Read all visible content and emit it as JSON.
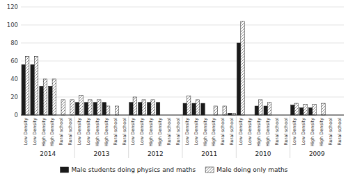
{
  "chart_data": {
    "type": "bar",
    "categories": [
      "Low Density",
      "Low Density",
      "High Density",
      "High Density",
      "Rural school",
      "Rural school",
      "Low Density",
      "Low Density",
      "High Density",
      "High Density",
      "Rural school",
      "Rural school",
      "Low Density",
      "Low Density",
      "High Density",
      "High Density",
      "Rural school",
      "Rural school",
      "Low Density",
      "Low Density",
      "High Density",
      "High Density",
      "Rural school",
      "Rural school",
      "Low Density",
      "Low Density",
      "High Density",
      "High Density",
      "Rural school",
      "Rural school",
      "Low Density",
      "Low Density",
      "High Density",
      "High Density",
      "Rural school",
      "Rural school"
    ],
    "series": [
      {
        "name": "Male students doing physics and maths",
        "color": "#1a1a1a",
        "values": [
          56,
          56,
          32,
          32,
          0,
          0,
          14,
          14,
          14,
          14,
          0,
          0,
          14,
          14,
          14,
          14,
          0,
          0,
          13,
          13,
          13,
          0,
          0,
          2,
          80,
          0,
          10,
          10,
          0,
          0,
          11,
          8,
          8,
          0,
          0,
          0
        ]
      },
      {
        "name": "Male doing only maths",
        "color": "white",
        "values": [
          65,
          65,
          40,
          40,
          17,
          17,
          22,
          17,
          17,
          10,
          10,
          0,
          20,
          17,
          17,
          0,
          0,
          0,
          21,
          17,
          0,
          10,
          10,
          2,
          104,
          0,
          17,
          14,
          0,
          0,
          13,
          12,
          12,
          13,
          0,
          0
        ]
      }
    ],
    "annotations": [
      "2014",
      "2013",
      "2012",
      "2011",
      "2010",
      "2009"
    ],
    "ylim": [
      0,
      120
    ],
    "yticks": [
      0,
      20,
      40,
      60,
      80,
      100,
      120
    ],
    "grid": true,
    "legend": "bottom"
  }
}
